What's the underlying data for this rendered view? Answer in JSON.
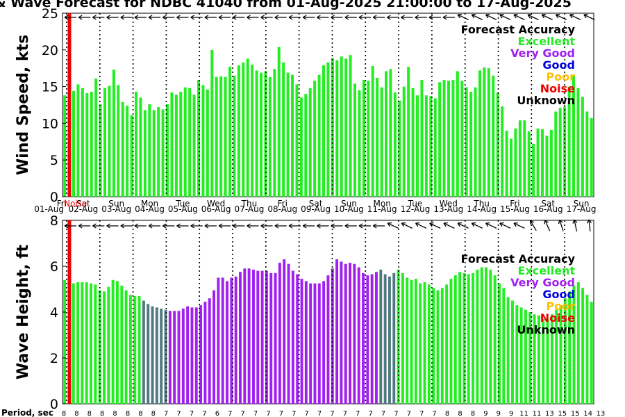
{
  "colors": {
    "Excellent": "#22ee22",
    "Very Good": "#a020f0",
    "Good": "#0000dd",
    "Poor": "#ffc000",
    "Noise": "#ee0000",
    "Unknown": "#000000",
    "blend": "#507a80"
  },
  "chart_data": {
    "title": "& Wave Forecast for NDBC 41040 from 01-Aug-2025 21:00:00 to 17-Aug-2025",
    "legend_title": "Forecast Accuracy",
    "legend": [
      "Excellent",
      "Very Good",
      "Good",
      "Poor",
      "Noise",
      "Unknown"
    ],
    "legend_placement": "top-right",
    "day_names": [
      "Fri",
      "Sat",
      "Sun",
      "Mon",
      "Tue",
      "Wed",
      "Thu",
      "Fri",
      "Sat",
      "Sun",
      "Mon",
      "Tue",
      "Wed",
      "Thu",
      "Fri",
      "Sat",
      "Sun"
    ],
    "day_dates": [
      "01-Aug",
      "02-Aug",
      "03-Aug",
      "04-Aug",
      "05-Aug",
      "06-Aug",
      "07-Aug",
      "08-Aug",
      "09-Aug",
      "10-Aug",
      "11-Aug",
      "12-Aug",
      "13-Aug",
      "14-Aug",
      "15-Aug",
      "16-Aug",
      "17-Aug"
    ],
    "noise_label": "Noise",
    "period_label": "Period, sec",
    "period_ticks": [
      "8",
      "8",
      "8",
      "8",
      "8",
      "8",
      "8",
      "8",
      "7",
      "7",
      "7",
      "7",
      "6",
      "7",
      "7",
      "7",
      "7",
      "7",
      "7",
      "7",
      "7",
      "7",
      "7",
      "7",
      "7",
      "7",
      "7",
      "7",
      "7",
      "7",
      "8",
      "8",
      "8",
      "9",
      "9",
      "9",
      "11",
      "11",
      "13",
      "15",
      "15",
      "14",
      "13"
    ],
    "charts": [
      {
        "type": "bar",
        "ylabel": "Wind Speed, kts",
        "ylim": [
          0,
          25
        ],
        "yticks": [
          0,
          5,
          10,
          15,
          20,
          25
        ],
        "values": [
          13.8,
          12.8,
          14.4,
          15.3,
          14.8,
          14.1,
          14.3,
          16.1,
          12.6,
          14.8,
          15.1,
          17.3,
          15.2,
          12.9,
          12.4,
          11.1,
          14.3,
          13.5,
          11.8,
          12.6,
          11.8,
          12.2,
          11.9,
          12.6,
          14.2,
          13.9,
          14.3,
          14.9,
          14.8,
          13.9,
          15.9,
          15.2,
          14.6,
          20.0,
          16.3,
          16.4,
          16.3,
          17.7,
          16.5,
          17.9,
          18.3,
          18.8,
          18.0,
          17.2,
          16.9,
          17.1,
          16.3,
          17.4,
          20.4,
          18.3,
          16.9,
          16.6,
          15.3,
          13.5,
          14.0,
          14.8,
          15.8,
          16.6,
          17.9,
          18.3,
          18.9,
          18.6,
          19.1,
          18.8,
          19.3,
          15.4,
          14.5,
          15.9,
          15.8,
          17.8,
          16.2,
          14.9,
          17.1,
          17.4,
          14.2,
          13.1,
          15.0,
          17.7,
          14.8,
          13.8,
          15.9,
          13.8,
          13.7,
          13.4,
          15.6,
          15.9,
          15.8,
          15.9,
          17.1,
          15.8,
          14.9,
          14.3,
          14.9,
          17.2,
          17.6,
          17.5,
          16.5,
          14.2,
          12.3,
          9.0,
          7.9,
          9.3,
          10.4,
          10.4,
          8.9,
          7.2,
          9.3,
          9.2,
          8.3,
          9.1,
          11.6,
          12.1,
          12.3,
          15.0,
          16.5,
          14.8,
          13.6,
          11.6,
          10.7
        ],
        "colors": [
          "Excellent"
        ]
      },
      {
        "type": "bar",
        "ylabel": "Wave Height, ft",
        "ylim": [
          0,
          8
        ],
        "yticks": [
          0,
          2,
          4,
          6,
          8
        ],
        "values": [
          5.4,
          5.4,
          5.25,
          5.3,
          5.3,
          5.3,
          5.25,
          5.2,
          4.95,
          4.9,
          5.1,
          5.4,
          5.35,
          5.15,
          4.95,
          4.75,
          4.7,
          4.7,
          4.5,
          4.35,
          4.25,
          4.2,
          4.15,
          4.1,
          4.05,
          4.05,
          4.05,
          4.15,
          4.25,
          4.2,
          4.2,
          4.3,
          4.45,
          4.6,
          4.95,
          5.5,
          5.5,
          5.35,
          5.5,
          5.55,
          5.75,
          5.9,
          5.9,
          5.85,
          5.8,
          5.8,
          5.8,
          5.7,
          5.7,
          6.15,
          6.3,
          6.1,
          5.8,
          5.65,
          5.45,
          5.35,
          5.25,
          5.25,
          5.25,
          5.35,
          5.6,
          5.9,
          6.3,
          6.2,
          6.1,
          6.15,
          6.1,
          5.95,
          5.7,
          5.6,
          5.65,
          5.75,
          5.85,
          5.65,
          5.55,
          5.7,
          5.85,
          5.7,
          5.5,
          5.4,
          5.45,
          5.25,
          5.3,
          5.2,
          5.05,
          4.95,
          5.05,
          5.2,
          5.45,
          5.6,
          5.75,
          5.7,
          5.65,
          5.7,
          5.85,
          5.95,
          5.95,
          5.85,
          5.6,
          5.25,
          5.05,
          4.65,
          4.5,
          4.3,
          4.2,
          4.1,
          4.0,
          3.9,
          3.85,
          3.7,
          3.7,
          3.9,
          4.1,
          4.3,
          4.6,
          4.9,
          5.15,
          5.3,
          5.05,
          4.75,
          4.45
        ],
        "colors": [
          "Excellent",
          "Excellent",
          "Excellent",
          "Excellent",
          "Excellent",
          "Excellent",
          "Excellent",
          "Excellent",
          "Excellent",
          "Excellent",
          "Excellent",
          "Excellent",
          "Excellent",
          "Excellent",
          "Excellent",
          "Excellent",
          "Excellent",
          "Excellent",
          "blend",
          "blend",
          "blend",
          "blend",
          "blend",
          "blend",
          "Very Good",
          "Very Good",
          "Very Good",
          "Very Good",
          "Very Good",
          "Very Good",
          "Very Good",
          "Very Good",
          "Very Good",
          "Very Good",
          "Very Good",
          "Very Good",
          "Very Good",
          "Very Good",
          "Very Good",
          "Very Good",
          "Very Good",
          "Very Good",
          "Very Good",
          "Very Good",
          "Very Good",
          "Very Good",
          "Very Good",
          "Very Good",
          "Very Good",
          "Very Good",
          "Very Good",
          "Very Good",
          "Very Good",
          "Very Good",
          "Very Good",
          "Very Good",
          "Very Good",
          "Very Good",
          "Very Good",
          "Very Good",
          "Very Good",
          "Very Good",
          "Very Good",
          "Very Good",
          "Very Good",
          "Very Good",
          "Very Good",
          "Very Good",
          "Very Good",
          "Very Good",
          "Very Good",
          "Very Good",
          "blend",
          "blend",
          "blend",
          "blend",
          "Excellent"
        ]
      }
    ]
  }
}
